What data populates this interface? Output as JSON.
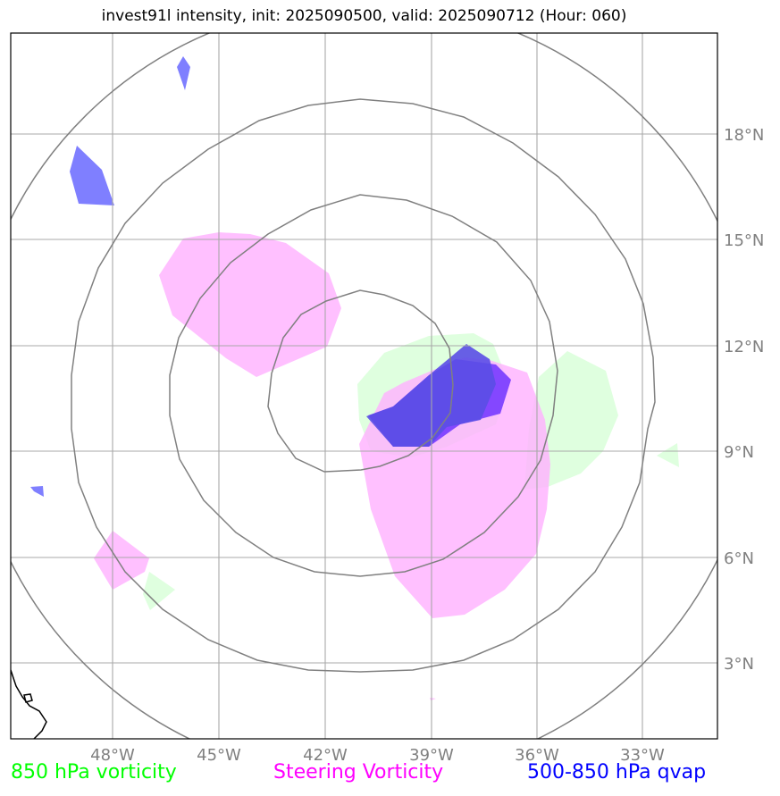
{
  "title": "invest91l intensity, init: 2025090500, valid: 2025090712 (Hour: 060)",
  "map": {
    "lat_labels": [
      "18°N",
      "15°N",
      "12°N",
      "9°N",
      "6°N",
      "3°N"
    ],
    "lon_labels": [
      "48°W",
      "45°W",
      "42°W",
      "39°W",
      "36°W",
      "33°W"
    ],
    "extent": {
      "lon": [
        -51,
        -31
      ],
      "lat": [
        1,
        21
      ]
    },
    "center": {
      "lon": -41,
      "lat": 10.4
    },
    "range_rings_deg": [
      3.2,
      5.9,
      8.5,
      11.3
    ]
  },
  "legend": [
    {
      "label": "850 hPa vorticity",
      "color": "#00ff00"
    },
    {
      "label": "Steering Vorticity",
      "color": "#ff00ff"
    },
    {
      "label": "500-850 hPa qvap",
      "color": "#0000ff"
    }
  ],
  "colors": {
    "vorticity_850": "#dcffdc",
    "steering_vorticity": "#ffbfff",
    "qvap": "#7f7fff",
    "qvap_dense": "#6a3ff0",
    "grid": "#a8a8a8",
    "rings": "#808080"
  }
}
